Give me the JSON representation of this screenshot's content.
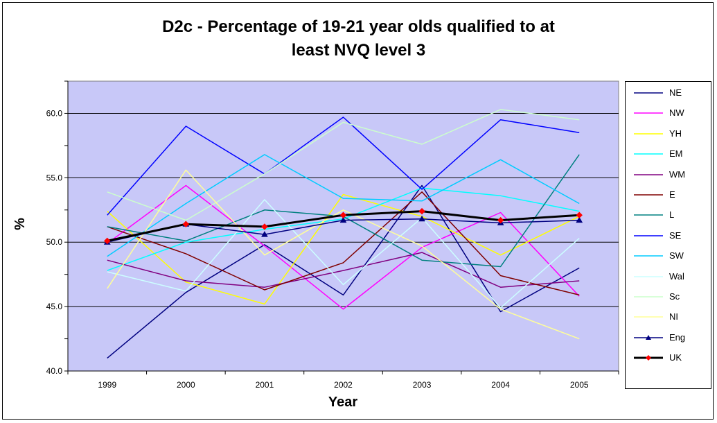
{
  "chart_data": {
    "type": "line",
    "title_lines": [
      "D2c - Percentage of 19-21 year olds qualified to at",
      "least NVQ level 3"
    ],
    "xlabel": "Year",
    "ylabel": "%",
    "categories": [
      "1999",
      "2000",
      "2001",
      "2002",
      "2003",
      "2004",
      "2005"
    ],
    "ylim": [
      40.0,
      62.5
    ],
    "yticks": [
      "40.0",
      "45.0",
      "50.0",
      "55.0",
      "60.0"
    ],
    "ytick_values": [
      40,
      45,
      50,
      55,
      60
    ],
    "grid": true,
    "legend_position": "right",
    "plot_background": "#c8c8f8",
    "series": [
      {
        "name": "NE",
        "color": "#000080",
        "values": [
          41.0,
          46.1,
          49.8,
          45.9,
          54.4,
          44.6,
          48.0
        ]
      },
      {
        "name": "NW",
        "color": "#ff00ff",
        "values": [
          49.9,
          54.4,
          49.7,
          44.8,
          49.6,
          52.3,
          45.8
        ]
      },
      {
        "name": "YH",
        "color": "#ffff00",
        "values": [
          52.4,
          46.9,
          45.2,
          53.7,
          52.0,
          49.0,
          52.0
        ]
      },
      {
        "name": "EM",
        "color": "#00ffff",
        "values": [
          47.8,
          50.0,
          51.0,
          51.8,
          54.2,
          53.6,
          52.4
        ]
      },
      {
        "name": "WM",
        "color": "#800080",
        "values": [
          48.6,
          47.0,
          46.5,
          47.8,
          49.2,
          46.5,
          47.0
        ]
      },
      {
        "name": "E",
        "color": "#800000",
        "values": [
          51.2,
          49.1,
          46.3,
          48.4,
          53.9,
          47.4,
          45.9
        ]
      },
      {
        "name": "L",
        "color": "#008080",
        "values": [
          51.2,
          50.1,
          52.5,
          52.0,
          48.6,
          48.1,
          56.8
        ]
      },
      {
        "name": "SE",
        "color": "#0000ff",
        "values": [
          52.1,
          59.0,
          55.3,
          59.7,
          54.1,
          59.5,
          58.5
        ]
      },
      {
        "name": "SW",
        "color": "#00ccff",
        "values": [
          48.9,
          53.0,
          56.8,
          53.4,
          53.2,
          56.4,
          53.0
        ]
      },
      {
        "name": "Wal",
        "color": "#ccffff",
        "values": [
          47.7,
          46.2,
          53.3,
          46.7,
          51.9,
          44.9,
          50.3
        ]
      },
      {
        "name": "Sc",
        "color": "#ccffcc",
        "values": [
          53.9,
          51.7,
          55.3,
          59.3,
          57.6,
          60.3,
          59.5
        ]
      },
      {
        "name": "NI",
        "color": "#ffff99",
        "values": [
          46.4,
          55.6,
          49.0,
          52.5,
          49.7,
          44.8,
          42.5
        ]
      },
      {
        "name": "Eng",
        "color": "#000080",
        "marker": "triangle",
        "values": [
          50.0,
          51.4,
          50.6,
          51.7,
          51.8,
          51.5,
          51.7
        ]
      },
      {
        "name": "UK",
        "color": "#000000",
        "marker": "diamond",
        "marker_color": "#ff0000",
        "values": [
          50.1,
          51.4,
          51.2,
          52.1,
          52.4,
          51.7,
          52.1
        ]
      }
    ]
  }
}
